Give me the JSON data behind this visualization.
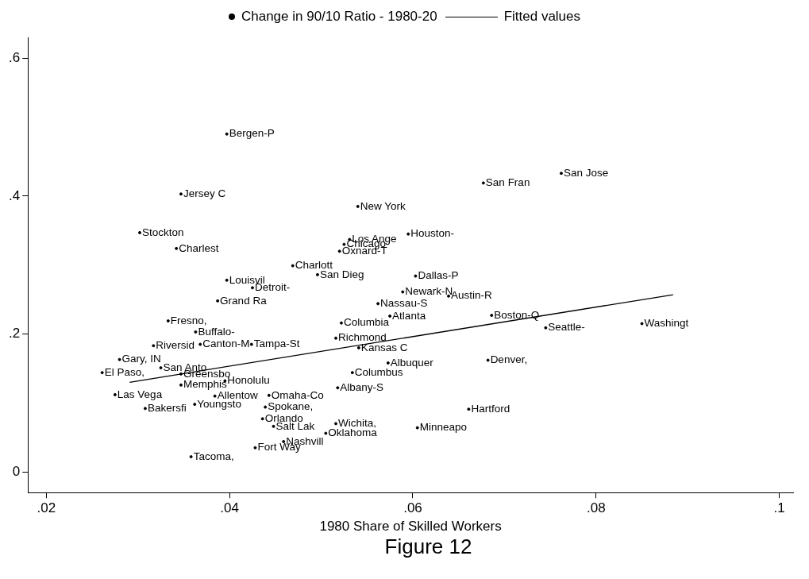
{
  "chart_data": {
    "type": "scatter",
    "xlabel": "1980 Share of Skilled Workers",
    "annotations": [
      "Figure 12"
    ],
    "xlim": [
      0.018,
      0.1015
    ],
    "ylim": [
      -0.03,
      0.63
    ],
    "xticks": [
      {
        "value": 0.02,
        "label": ".02"
      },
      {
        "value": 0.04,
        "label": ".04"
      },
      {
        "value": 0.06,
        "label": ".06"
      },
      {
        "value": 0.08,
        "label": ".08"
      },
      {
        "value": 0.1,
        "label": ".1"
      }
    ],
    "yticks": [
      0,
      {
        "value": 0.2,
        "label": ".2"
      },
      {
        "value": 0.4,
        "label": ".4"
      },
      {
        "value": 0.6,
        "label": ".6"
      }
    ],
    "grid": false,
    "legend": "top",
    "series": [
      {
        "name": "Change in 90/10 Ratio - 1980-20",
        "type": "scatter",
        "marker": "circle",
        "color": "#000000",
        "x": [
          0.0397,
          0.0762,
          0.0677,
          0.0347,
          0.054,
          0.0302,
          0.0595,
          0.0531,
          0.0525,
          0.052,
          0.0342,
          0.0469,
          0.0496,
          0.0603,
          0.0397,
          0.0425,
          0.0589,
          0.0639,
          0.0387,
          0.0562,
          0.0575,
          0.0686,
          0.0333,
          0.0522,
          0.0745,
          0.085,
          0.0363,
          0.0516,
          0.0317,
          0.0541,
          0.0368,
          0.0424,
          0.028,
          0.0573,
          0.0682,
          0.0325,
          0.0534,
          0.0261,
          0.0347,
          0.0347,
          0.0395,
          0.0518,
          0.0384,
          0.0275,
          0.0443,
          0.0362,
          0.0308,
          0.0661,
          0.0448,
          0.0516,
          0.0505,
          0.0605,
          0.0459,
          0.0428,
          0.0358,
          0.0436,
          0.0439
        ],
        "values": [
          0.49,
          0.433,
          0.419,
          0.403,
          0.385,
          0.347,
          0.345,
          0.337,
          0.33,
          0.32,
          0.324,
          0.299,
          0.286,
          0.284,
          0.278,
          0.267,
          0.261,
          0.255,
          0.248,
          0.244,
          0.226,
          0.227,
          0.219,
          0.216,
          0.209,
          0.215,
          0.203,
          0.194,
          0.183,
          0.18,
          0.185,
          0.185,
          0.163,
          0.158,
          0.162,
          0.151,
          0.144,
          0.144,
          0.142,
          0.126,
          0.132,
          0.122,
          0.11,
          0.112,
          0.111,
          0.098,
          0.092,
          0.091,
          0.066,
          0.07,
          0.056,
          0.064,
          0.044,
          0.035,
          0.022,
          0.077,
          0.094
        ],
        "value_labels": [
          "Bergen-P",
          "San Jose",
          "San Fran",
          "Jersey C",
          "New York",
          "Stockton",
          "Houston-",
          "Los Ange",
          "Chicago-",
          "Oxnard-T",
          "Charlest",
          "Charlott",
          "San Dieg",
          "Dallas-P",
          "Louisvil",
          "Detroit-",
          "Newark-N",
          "Austin-R",
          "Grand Ra",
          "Nassau-S",
          "Atlanta",
          "Boston-Q",
          "Fresno,",
          "Columbia",
          "Seattle-",
          "Washingt",
          "Buffalo-",
          "Richmond",
          "Riversid",
          "Kansas C",
          "Canton-M",
          "Tampa-St",
          "Gary, IN",
          "Albuquer",
          "Denver,",
          "San Anto",
          "Columbus",
          "El Paso,",
          "Greensbo",
          "Memphis",
          "Honolulu",
          "Albany-S",
          "Allentow",
          "Las Vega",
          "Omaha-Co",
          "Youngsto",
          "Bakersfi",
          "Hartford",
          "Salt Lak",
          "Wichita,",
          "Oklahoma",
          "Minneapo",
          "Nashvill",
          "Fort Way",
          "Tacoma,",
          "Orlando",
          "Spokane,"
        ]
      },
      {
        "name": "Fitted values",
        "type": "line",
        "color": "#000000",
        "x": [
          0.0291,
          0.0884
        ],
        "values": [
          0.13,
          0.257
        ]
      }
    ]
  }
}
